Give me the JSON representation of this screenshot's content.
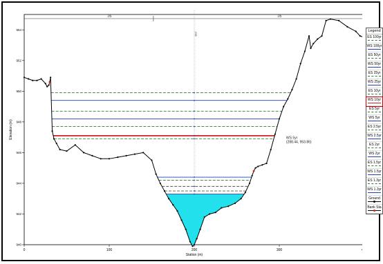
{
  "window": {
    "title": ""
  },
  "chart_data": {
    "type": "line",
    "title": "",
    "xlabel": "Station (m)",
    "ylabel": "Elevation (m)",
    "xlim": [
      0,
      400
    ],
    "ylim": [
      940,
      955
    ],
    "x_ticks": [
      "0",
      "100",
      "200",
      "300",
      "400"
    ],
    "y_ticks": [
      "940",
      "942",
      "944",
      "946",
      "948",
      "950",
      "952",
      "954"
    ],
    "reach_labels": {
      "left": ".05",
      "center": ".035",
      "right": ".05"
    },
    "ground_profile": {
      "name": "Ground",
      "x": [
        0,
        5,
        10,
        15,
        20,
        25,
        27,
        29,
        30,
        31,
        33,
        35,
        38,
        42,
        50,
        60,
        70,
        80,
        90,
        100,
        110,
        120,
        130,
        140,
        150,
        155,
        160,
        165,
        170,
        175,
        180,
        185,
        190,
        195,
        198,
        200,
        203,
        207,
        212,
        218,
        225,
        232,
        240,
        248,
        255,
        260,
        265,
        268,
        270,
        272,
        275,
        280,
        285,
        290,
        295,
        300,
        305,
        310,
        315,
        320,
        325,
        330,
        335,
        337,
        340,
        345,
        350,
        355,
        360,
        370,
        380,
        390,
        395,
        400
      ],
      "y": [
        950.9,
        950.8,
        950.7,
        950.7,
        950.8,
        950.5,
        950.3,
        950.4,
        950.6,
        950.9,
        947.4,
        946.9,
        946.6,
        946.2,
        946.1,
        946.5,
        946.0,
        945.8,
        945.6,
        945.6,
        945.7,
        945.8,
        945.9,
        946.0,
        945.5,
        944.6,
        944.0,
        943.5,
        943.0,
        942.6,
        942.2,
        941.6,
        941.0,
        940.2,
        939.9,
        940.0,
        940.4,
        941.0,
        941.8,
        942.0,
        942.1,
        942.4,
        942.5,
        942.7,
        943.0,
        943.4,
        944.0,
        944.5,
        944.8,
        945.0,
        945.1,
        945.2,
        945.3,
        946.2,
        947.2,
        948.2,
        949.0,
        949.5,
        950.1,
        950.8,
        951.8,
        952.6,
        953.6,
        952.8,
        953.1,
        953.4,
        953.6,
        954.6,
        954.7,
        954.6,
        954.2,
        953.9,
        953.6,
        953.5
      ]
    },
    "water_surfaces": [
      {
        "name": "WS 100yr",
        "elevation": 949.9,
        "color": "#2e7d32",
        "dash": true
      },
      {
        "name": "WS 50yr",
        "elevation": 949.4,
        "color": "#1f3fbf",
        "dash": false
      },
      {
        "name": "WS 25yr",
        "elevation": 948.7,
        "color": "#2e7d32",
        "dash": true
      },
      {
        "name": "WS 10yr",
        "elevation": 948.2,
        "color": "#1f3fbf",
        "dash": false
      },
      {
        "name": "ES 10yr",
        "elevation": 947.7,
        "color": "#2e7d32",
        "dash": true
      },
      {
        "name": "WS 5yr",
        "elevation": 947.1,
        "color": "#d21f1f",
        "dash": false,
        "thick": true
      },
      {
        "name": "ES 5yr",
        "elevation": 946.9,
        "color": "#2e7d32",
        "dash": true
      },
      {
        "name": "WS 2.5yr",
        "elevation": 944.4,
        "color": "#1f3fbf",
        "dash": false
      },
      {
        "name": "ES 2.5yr",
        "elevation": 944.2,
        "color": "#2e7d32",
        "dash": true
      },
      {
        "name": "WS 2yr",
        "elevation": 943.8,
        "color": "#555555",
        "dash": true
      },
      {
        "name": "WS 1.5yr",
        "elevation": 943.5,
        "color": "#555555",
        "dash": true
      },
      {
        "name": "WS 1.3yr",
        "elevation": 943.3,
        "color": "#1f3fbf",
        "dash": false
      }
    ],
    "filled_water": {
      "elevation": 943.3,
      "color": "#22e0ec",
      "x_range": [
        168,
        258
      ]
    },
    "annotation": {
      "lines": [
        "WS 5yr",
        "(288.44, 953.86)"
      ],
      "x": 243,
      "y": 946.9
    },
    "legend": {
      "title": "Legend",
      "placement": "right",
      "items": [
        {
          "label": "ES 100yr",
          "color": "#2e7d32",
          "dash": true
        },
        {
          "label": "WS 100yr",
          "color": "#1f3fbf",
          "dash": false
        },
        {
          "label": "ES 50yr",
          "color": "#2e7d32",
          "dash": true
        },
        {
          "label": "WS 50yr",
          "color": "#1f3fbf",
          "dash": false
        },
        {
          "label": "ES 25yr",
          "color": "#2e7d32",
          "dash": true
        },
        {
          "label": "WS 25yr",
          "color": "#1f3fbf",
          "dash": false
        },
        {
          "label": "ES 10yr",
          "color": "#2e7d32",
          "dash": true
        },
        {
          "label": "WS 10yr",
          "color": "#d21f1f",
          "dash": false,
          "selected": true
        },
        {
          "label": "ES 5yr",
          "color": "#2e7d32",
          "dash": true
        },
        {
          "label": "WS 5yr",
          "color": "#1f3fbf",
          "dash": false
        },
        {
          "label": "ES 2.5yr",
          "color": "#2e7d32",
          "dash": true
        },
        {
          "label": "WS 2.5yr",
          "color": "#1f3fbf",
          "dash": false
        },
        {
          "label": "ES 2yr",
          "color": "#2e7d32",
          "dash": true
        },
        {
          "label": "WS 2yr",
          "color": "#1f3fbf",
          "dash": false
        },
        {
          "label": "ES 1.5yr",
          "color": "#2e7d32",
          "dash": true
        },
        {
          "label": "WS 1.5yr",
          "color": "#1f3fbf",
          "dash": false
        },
        {
          "label": "ES 1.3yr",
          "color": "#2e7d32",
          "dash": true
        },
        {
          "label": "WS 1.3yr",
          "color": "#1f3fbf",
          "dash": false
        },
        {
          "label": "Ground",
          "color": "#000000",
          "dash": false,
          "marker": true
        },
        {
          "label": "Bank Sta",
          "color": "#000000",
          "dash": false,
          "bank": true
        }
      ]
    },
    "bank_stations": [
      30,
      270
    ],
    "grid": false
  }
}
